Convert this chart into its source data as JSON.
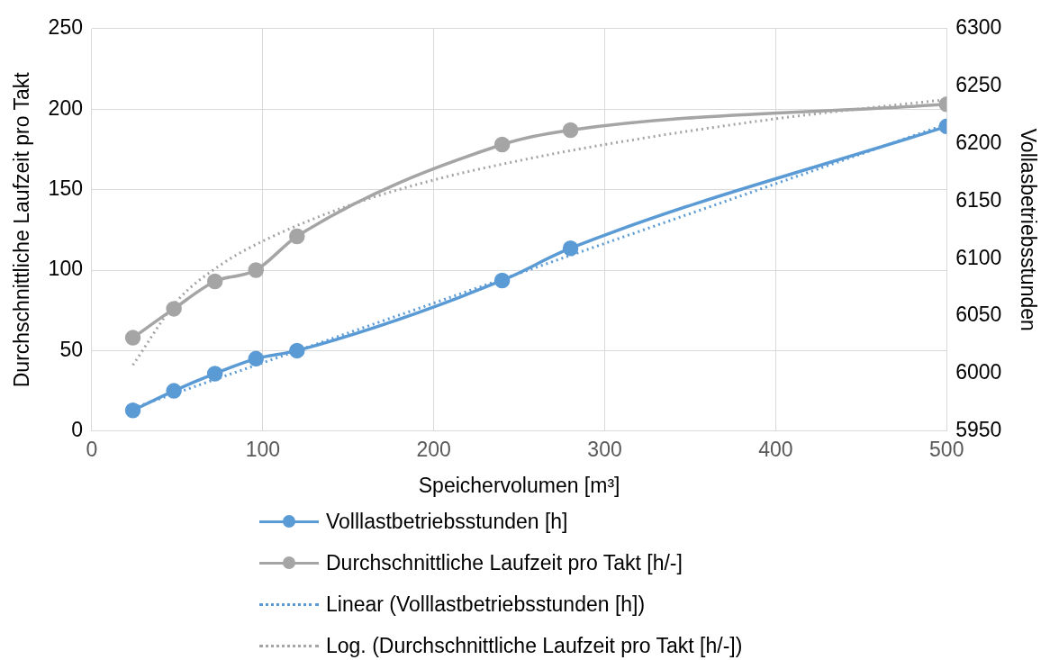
{
  "chart_data": {
    "type": "line",
    "xlabel": "Speichervolumen [m³]",
    "ylabel": "Durchschnittliche Laufzeit pro Takt",
    "y2label": "Vollasbetriebsstunden",
    "xlim": [
      0,
      500
    ],
    "xticks": [
      0,
      100,
      200,
      300,
      400,
      500
    ],
    "ylim": [
      0,
      250
    ],
    "yticks": [
      0,
      50,
      100,
      150,
      200,
      250
    ],
    "y2lim": [
      5950,
      6300
    ],
    "y2ticks": [
      5950,
      6000,
      6050,
      6100,
      6150,
      6200,
      6250,
      6300
    ],
    "grid": true,
    "legend": "bottom",
    "series": [
      {
        "name": "Volllastbetriebsstunden [h]",
        "color": "#5b9bd5",
        "axis": "y2",
        "marker": "circle",
        "line_style": "solid",
        "x": [
          24,
          48,
          72,
          96,
          120,
          240,
          280,
          500
        ],
        "values": [
          5968,
          5985,
          6000,
          6013,
          6020,
          6081,
          6109,
          6215
        ]
      },
      {
        "name": "Durchschnittliche Laufzeit pro Takt [h/-]",
        "color": "#a5a5a5",
        "marker": "circle",
        "line_style": "solid",
        "x": [
          24,
          48,
          72,
          96,
          120,
          240,
          280,
          500
        ],
        "values": [
          58,
          76,
          93,
          100,
          121,
          178,
          187,
          203
        ]
      },
      {
        "name": "Linear (Volllastbetriebsstunden [h])",
        "color": "#5b9bd5",
        "axis": "y2",
        "marker": "none",
        "line_style": "dotted",
        "x": [
          24,
          500
        ],
        "values": [
          5970,
          6217
        ]
      },
      {
        "name": "Log. (Durchschnittliche Laufzeit pro Takt [h/-])",
        "color": "#a5a5a5",
        "marker": "none",
        "line_style": "dotted",
        "x": [
          24,
          50,
          75,
          100,
          150,
          200,
          250,
          300,
          400,
          500
        ],
        "values": [
          41,
          81,
          103,
          118,
          140,
          156,
          168,
          178,
          194,
          206
        ]
      }
    ]
  }
}
